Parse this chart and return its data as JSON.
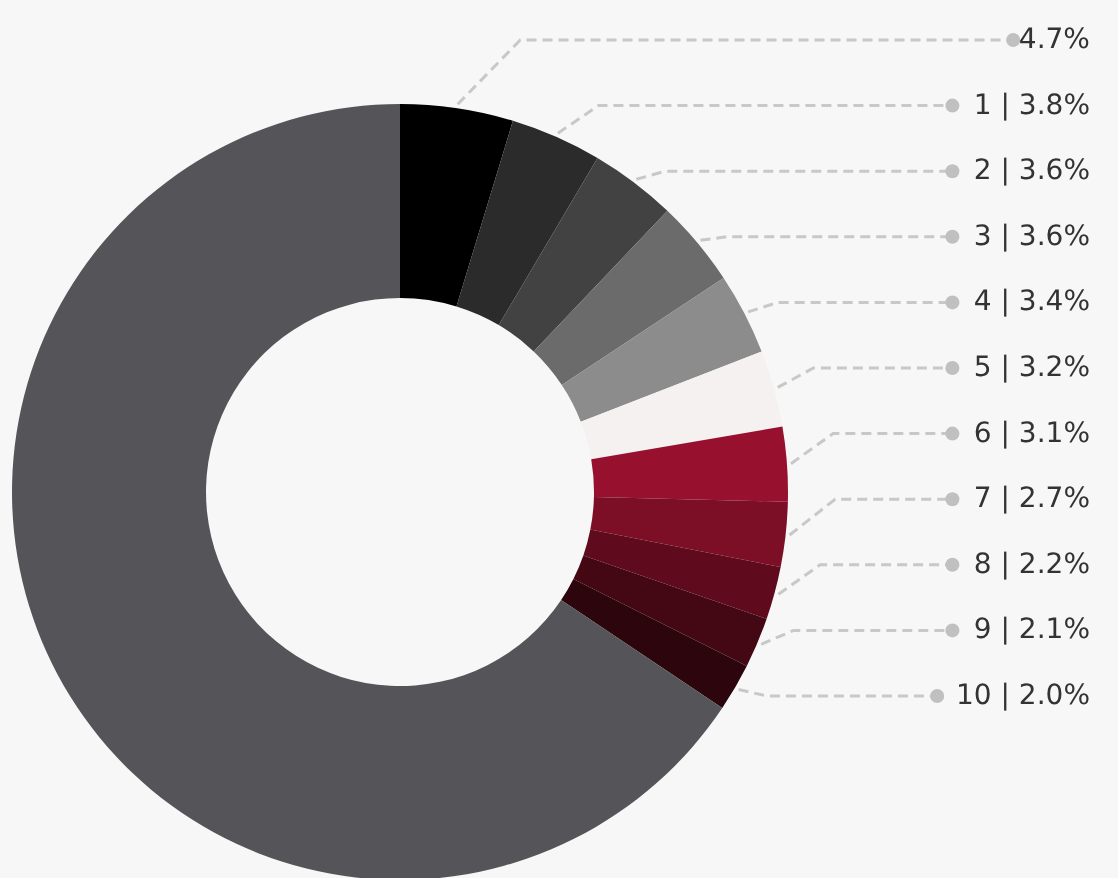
{
  "chart_data": {
    "type": "donut",
    "categories": [
      null,
      "1",
      "2",
      "3",
      "4",
      "5",
      "6",
      "7",
      "8",
      "9",
      "10",
      null
    ],
    "values": [
      4.7,
      3.8,
      3.6,
      3.6,
      3.4,
      3.2,
      3.1,
      2.7,
      2.2,
      2.1,
      2.0,
      65.6
    ],
    "value_labels": [
      "4.7%",
      "| 3.8%",
      "| 3.6%",
      "| 3.6%",
      "| 3.4%",
      "| 3.2%",
      "| 3.1%",
      "| 2.7%",
      "| 2.2%",
      "| 2.1%",
      "| 2.0%",
      null
    ],
    "colors": [
      "#000000",
      "#2b2b2b",
      "#424242",
      "#6b6b6b",
      "#8c8c8c",
      "#f6f1f1",
      "#97112f",
      "#7c0e26",
      "#600b1d",
      "#440815",
      "#2c050d",
      "#555458"
    ]
  }
}
